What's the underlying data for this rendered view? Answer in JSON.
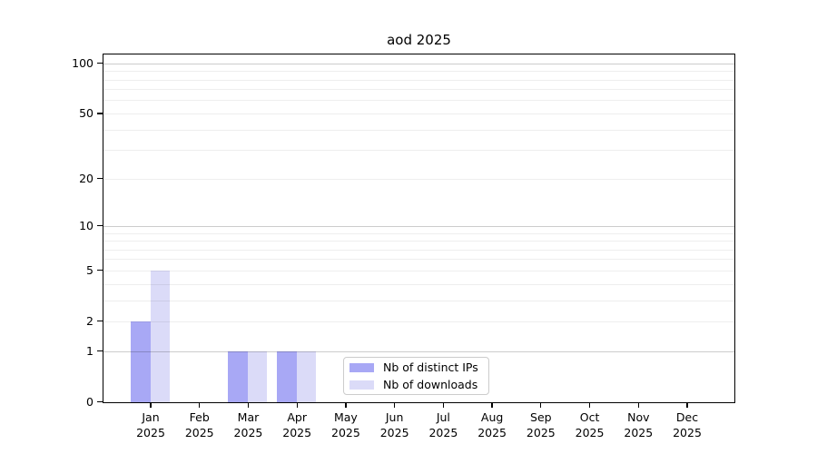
{
  "chart_data": {
    "type": "bar",
    "title": "aod 2025",
    "x": {
      "months": [
        "Jan",
        "Feb",
        "Mar",
        "Apr",
        "May",
        "Jun",
        "Jul",
        "Aug",
        "Sep",
        "Oct",
        "Nov",
        "Dec"
      ],
      "year": "2025"
    },
    "series": [
      {
        "name": "Nb of distinct IPs",
        "color": "#a8a8f5",
        "values": [
          2,
          0,
          1,
          1,
          0,
          0,
          0,
          0,
          0,
          0,
          0,
          0
        ]
      },
      {
        "name": "Nb of downloads",
        "color": "#dbdbf8",
        "values": [
          5,
          0,
          1,
          1,
          0,
          0,
          0,
          0,
          0,
          0,
          0,
          0
        ]
      }
    ],
    "y_axis": {
      "scale": "log10(value+1)",
      "tick_values": [
        0,
        1,
        2,
        5,
        10,
        20,
        50,
        100
      ],
      "major_gridlines": [
        1,
        10,
        100
      ],
      "minor_gridlines": [
        2,
        3,
        4,
        5,
        6,
        7,
        8,
        9,
        20,
        30,
        40,
        50,
        60,
        70,
        80,
        90
      ],
      "range": [
        0,
        113
      ]
    },
    "legend": {
      "position": "bottom-center",
      "entries": [
        "Nb of distinct IPs",
        "Nb of downloads"
      ]
    },
    "grid": true
  },
  "colors": {
    "axis": "#000000",
    "background": "#ffffff",
    "major_grid": "rgba(0,0,0,0.20)",
    "minor_grid": "rgba(0,0,0,0.065)",
    "legend_border": "#cccccc",
    "ips_bar": "#a8a8f5",
    "downloads_bar": "#dbdbf8"
  }
}
